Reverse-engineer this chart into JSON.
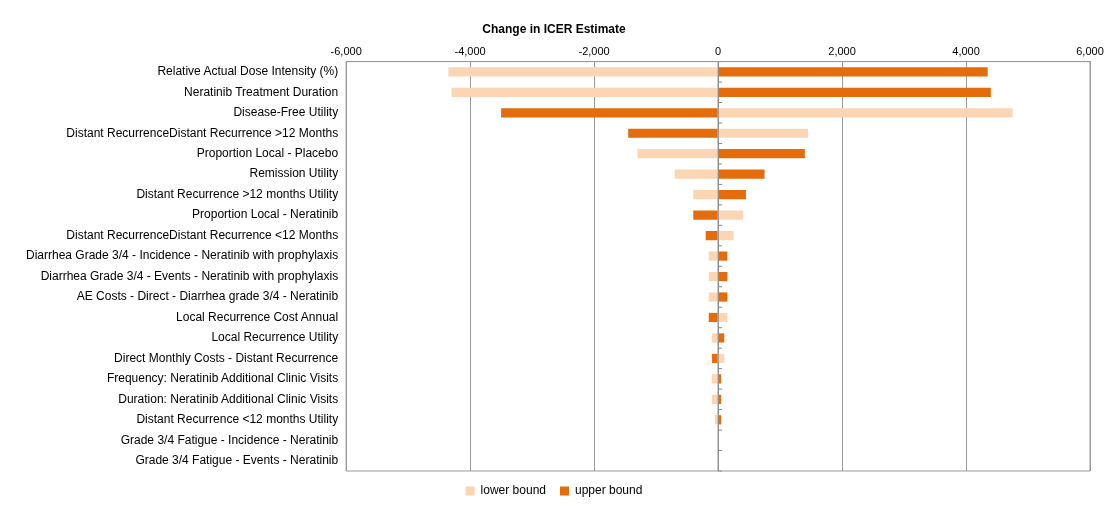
{
  "chart_data": {
    "type": "bar",
    "orientation": "horizontal",
    "title": "Change in ICER Estimate",
    "categories": [
      "Relative Actual Dose Intensity (%)",
      "Neratinib Treatment Duration",
      "Disease-Free Utility",
      "Distant RecurrenceDistant Recurrence >12 Months",
      "Proportion Local - Placebo",
      "Remission Utility",
      "Distant Recurrence >12 months Utility",
      "Proportion Local - Neratinib",
      "Distant RecurrenceDistant Recurrence <12 Months",
      "Diarrhea Grade 3/4 - Incidence - Neratinib with prophylaxis",
      "Diarrhea Grade 3/4 - Events - Neratinib with prophylaxis",
      "AE Costs - Direct - Diarrhea grade 3/4 - Neratinib",
      "Local Recurrence Cost Annual",
      "Local Recurrence Utility",
      "Direct Monthly Costs - Distant Recurrence",
      "Frequency: Neratinib Additional Clinic Visits",
      "Duration: Neratinib Additional Clinic Visits",
      "Distant Recurrence <12 months Utility",
      "Grade 3/4 Fatigue - Incidence - Neratinib",
      "Grade 3/4 Fatigue - Events - Neratinib"
    ],
    "series": [
      {
        "name": "lower bound",
        "color": "#fcd5b4",
        "values": [
          -4350,
          -4300,
          4750,
          1450,
          -1300,
          -700,
          -400,
          400,
          250,
          -150,
          -150,
          -150,
          150,
          -100,
          100,
          -100,
          -100,
          -50,
          0,
          0
        ]
      },
      {
        "name": "upper bound",
        "color": "#e46c0a",
        "values": [
          4350,
          4400,
          -3500,
          -1450,
          1400,
          750,
          450,
          -400,
          -200,
          150,
          150,
          150,
          -150,
          100,
          -100,
          50,
          50,
          50,
          0,
          0
        ]
      }
    ],
    "xlim": [
      -6000,
      6000
    ],
    "xticks": [
      {
        "value": -6000,
        "label": "-6,000"
      },
      {
        "value": -4000,
        "label": "-4,000"
      },
      {
        "value": -2000,
        "label": "-2,000"
      },
      0,
      {
        "value": 2000,
        "label": "2,000"
      },
      {
        "value": 4000,
        "label": "4,000"
      },
      {
        "value": 6000,
        "label": "6,000"
      }
    ],
    "grid": "x",
    "legend": "bottom",
    "stacked": true
  }
}
